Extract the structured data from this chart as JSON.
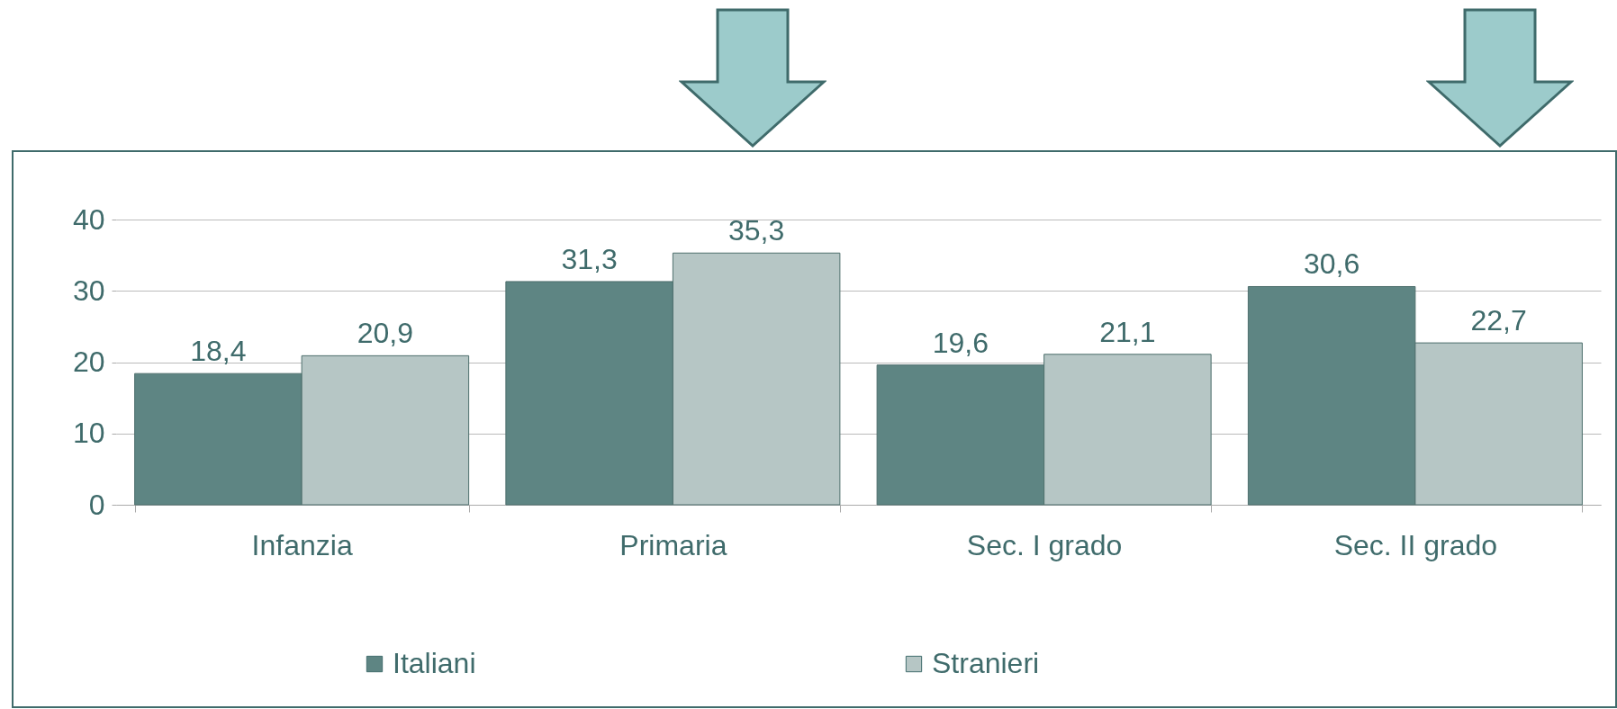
{
  "chart_data": {
    "type": "bar",
    "categories": [
      "Infanzia",
      "Primaria",
      "Sec. I grado",
      "Sec. II grado"
    ],
    "series": [
      {
        "name": "Italiani",
        "color": "#5e8583",
        "values": [
          18.4,
          31.3,
          19.6,
          30.6
        ],
        "value_labels": [
          "18,4",
          "31,3",
          "19,6",
          "30,6"
        ]
      },
      {
        "name": "Stranieri",
        "color": "#b6c6c5",
        "values": [
          20.9,
          35.3,
          21.1,
          22.7
        ],
        "value_labels": [
          "20,9",
          "35,3",
          "21,1",
          "22,7"
        ]
      }
    ],
    "ylim": [
      0,
      40
    ],
    "yticks": [
      0,
      10,
      20,
      30,
      40
    ],
    "grid": "y",
    "legend": "bottom"
  }
}
